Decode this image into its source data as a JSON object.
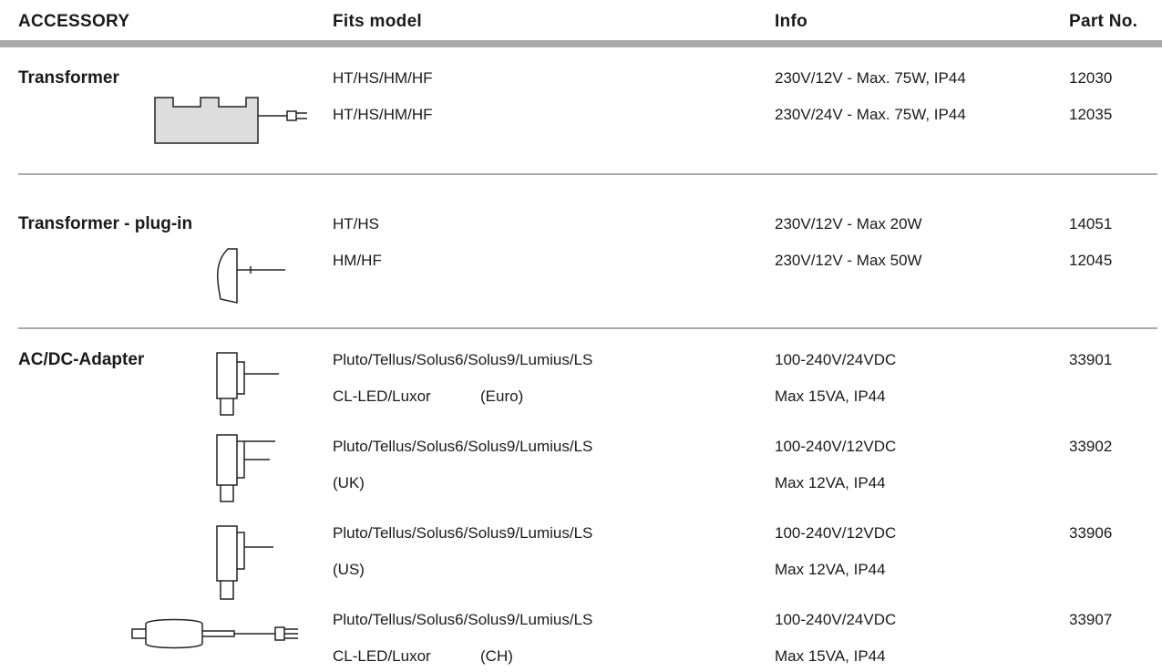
{
  "header": [
    "ACCESSORY",
    "Fits model",
    "Info",
    "Part No."
  ],
  "sections": [
    {
      "name": "Transformer",
      "rows": [
        {
          "model": [
            "HT/HS/HM/HF"
          ],
          "info": [
            "230V/12V - Max. 75W, IP44"
          ],
          "part": "12030"
        },
        {
          "model": [
            "HT/HS/HM/HF"
          ],
          "info": [
            "230V/24V - Max. 75W, IP44"
          ],
          "part": "12035"
        }
      ]
    },
    {
      "name": "Transformer - plug-in",
      "rows": [
        {
          "model": [
            "HT/HS"
          ],
          "info": [
            "230V/12V - Max 20W"
          ],
          "part": "14051"
        },
        {
          "model": [
            "HM/HF"
          ],
          "info": [
            "230V/12V - Max 50W"
          ],
          "part": "12045"
        }
      ]
    },
    {
      "name": "AC/DC-Adapter",
      "rows": [
        {
          "model": [
            "Pluto/Tellus/Solus6/Solus9/Lumius/LS",
            "CL-LED/Luxor"
          ],
          "region": "(Euro)",
          "info": [
            "100-240V/24VDC",
            "Max 15VA, IP44"
          ],
          "part": "33901"
        },
        {
          "model": [
            "Pluto/Tellus/Solus6/Solus9/Lumius/LS"
          ],
          "region": "(UK)",
          "info": [
            "100-240V/12VDC",
            "Max 12VA, IP44"
          ],
          "part": "33902"
        },
        {
          "model": [
            "Pluto/Tellus/Solus6/Solus9/Lumius/LS"
          ],
          "region": "(US)",
          "info": [
            "100-240V/12VDC",
            "Max 12VA, IP44"
          ],
          "part": "33906"
        },
        {
          "model": [
            "Pluto/Tellus/Solus6/Solus9/Lumius/LS",
            "CL-LED/Luxor"
          ],
          "region": "(CH)",
          "info": [
            "100-240V/24VDC",
            "Max 15VA, IP44"
          ],
          "part": "33907"
        }
      ]
    }
  ]
}
